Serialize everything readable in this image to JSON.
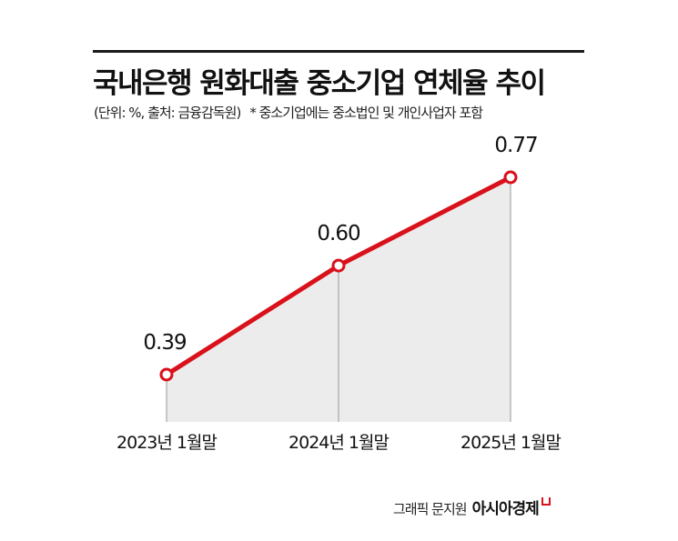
{
  "header": {
    "title": "국내은행 원화대출 중소기업 연체율 추이",
    "unit_source": "(단위: %, 출처: 금융감독원)",
    "note": "* 중소기업에는 중소법인 및 개인사업자 포함"
  },
  "footer": {
    "credit": "그래픽 문지원",
    "brand": "아시아경제"
  },
  "colors": {
    "line": "#d9111b",
    "area_fill": "#ececec",
    "guide": "#999999"
  },
  "chart_data": {
    "type": "line",
    "title": "국내은행 원화대출 중소기업 연체율 추이",
    "subtitle": "(단위: %, 출처: 금융감독원) * 중소기업에는 중소법인 및 개인사업자 포함",
    "categories": [
      "2023년 1월말",
      "2024년 1월말",
      "2025년 1월말"
    ],
    "values": [
      0.39,
      0.6,
      0.77
    ],
    "value_labels": [
      "0.39",
      "0.60",
      "0.77"
    ],
    "xlabel": "",
    "ylabel": "%",
    "grid": false,
    "legend": null,
    "area_fill": true
  }
}
